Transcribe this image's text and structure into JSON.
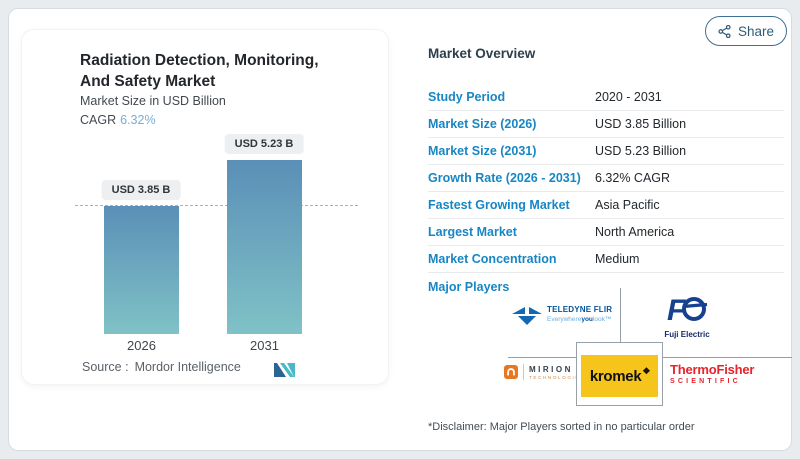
{
  "share": {
    "label": "Share"
  },
  "left_card": {
    "title": "Radiation Detection, Monitoring, And Safety Market",
    "subtitle": "Market Size in USD Billion",
    "cagr_label": "CAGR",
    "cagr_value": "6.32%",
    "source_label": "Source :",
    "source_value": "Mordor Intelligence"
  },
  "chart_data": {
    "type": "bar",
    "title": "Radiation Detection, Monitoring, And Safety Market",
    "subtitle": "Market Size in USD Billion",
    "unit": "USD Billion",
    "cagr": "6.32%",
    "categories": [
      "2026",
      "2031"
    ],
    "values": [
      3.85,
      5.23
    ],
    "bar_labels": [
      "USD 3.85 B",
      "USD 5.23 B"
    ],
    "reference_line_value": 3.85,
    "bar_gradient": [
      "#5b8fb7",
      "#7fc2c6"
    ],
    "grid": false,
    "legend": false
  },
  "overview": {
    "heading": "Market Overview",
    "rows": [
      {
        "label": "Study Period",
        "value": "2020 - 2031"
      },
      {
        "label": "Market Size (2026)",
        "value": "USD 3.85 Billion"
      },
      {
        "label": "Market Size (2031)",
        "value": "USD 5.23 Billion"
      },
      {
        "label": "Growth Rate (2026 - 2031)",
        "value": "6.32% CAGR"
      },
      {
        "label": "Fastest Growing Market",
        "value": "Asia Pacific"
      },
      {
        "label": "Largest Market",
        "value": "North America"
      },
      {
        "label": "Market Concentration",
        "value": "Medium"
      }
    ],
    "major_players_label": "Major Players",
    "disclaimer": "*Disclaimer: Major Players sorted in no particular order"
  },
  "logos": {
    "teledyne": {
      "name": "TELEDYNE FLIR",
      "tagline_pre": "Everywhere",
      "tagline_mid": "you",
      "tagline_post": "look™"
    },
    "fuji": {
      "name": "Fuji Electric"
    },
    "mirion": {
      "name": "MIRION",
      "sub": "TECHNOLOGIES"
    },
    "kromek": {
      "name": "kromek",
      "mark": "❖"
    },
    "thermo": {
      "name": "ThermoFisher",
      "sub": "SCIENTIFIC"
    }
  },
  "colors": {
    "accent_blue": "#1886c3",
    "cagr_blue": "#79add8",
    "bar_top": "#5b8fb7",
    "bar_bottom": "#7fc2c6",
    "kromek_yellow": "#f6c51c",
    "thermo_red": "#e8232a",
    "mirion_orange": "#e87722",
    "teledyne_blue": "#1467b3",
    "fuji_navy": "#17418f",
    "share_border": "#3f6f93"
  }
}
